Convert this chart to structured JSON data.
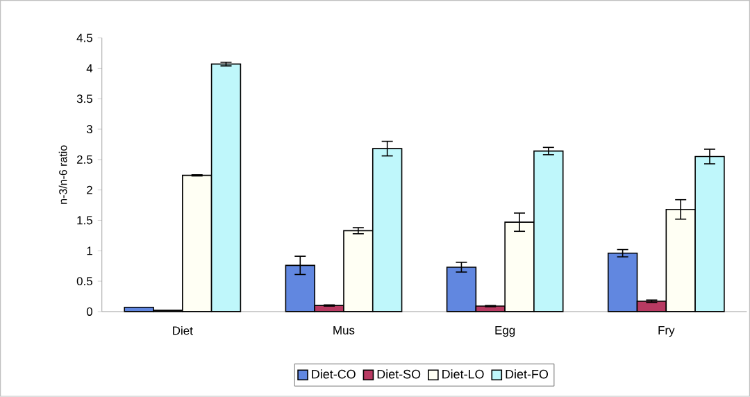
{
  "chart_data": {
    "type": "bar",
    "ylabel": "n-3/n-6 ratio",
    "categories": [
      "Diet",
      "Mus",
      "Egg",
      "Fry"
    ],
    "series": [
      {
        "name": "Diet-CO",
        "color": "#6187e0",
        "values": [
          0.07,
          0.76,
          0.73,
          0.96
        ],
        "errors": [
          null,
          0.15,
          0.08,
          0.06
        ]
      },
      {
        "name": "Diet-SO",
        "color": "#b83a62",
        "values": [
          0.02,
          0.1,
          0.09,
          0.17
        ],
        "errors": [
          null,
          0.01,
          0.01,
          0.02
        ]
      },
      {
        "name": "Diet-LO",
        "color": "#fffff4",
        "values": [
          2.24,
          1.33,
          1.47,
          1.68
        ],
        "errors": [
          0.01,
          0.05,
          0.15,
          0.16
        ]
      },
      {
        "name": "Diet-FO",
        "color": "#bff7fb",
        "values": [
          4.07,
          2.68,
          2.64,
          2.55
        ],
        "errors": [
          0.03,
          0.12,
          0.06,
          0.12
        ]
      }
    ],
    "ylim": [
      0,
      4.5
    ],
    "yticks": [
      0,
      0.5,
      1,
      1.5,
      2,
      2.5,
      3,
      3.5,
      4,
      4.5
    ],
    "legend": "bottom"
  }
}
